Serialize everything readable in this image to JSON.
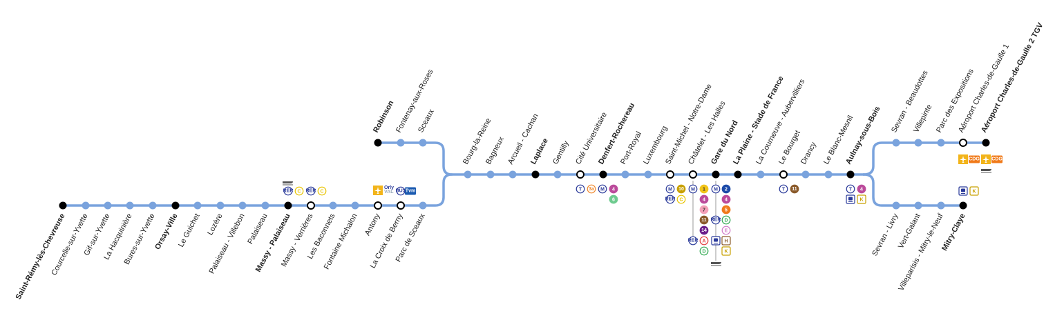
{
  "line_color": "#7aa3dd",
  "stations": [
    {
      "id": "saint-remy",
      "name": "Saint-Rémy-lès-Chevreuse",
      "bold": true,
      "type": "terminus"
    },
    {
      "id": "courcelle",
      "name": "Courcelle-sur-Yvette",
      "bold": false,
      "type": "stop"
    },
    {
      "id": "gif",
      "name": "Gif-sur-Yvette",
      "bold": false,
      "type": "stop"
    },
    {
      "id": "hacquiniere",
      "name": "La Hacquinière",
      "bold": false,
      "type": "stop"
    },
    {
      "id": "bures",
      "name": "Bures-sur-Yvette",
      "bold": false,
      "type": "stop"
    },
    {
      "id": "orsay",
      "name": "Orsay-Ville",
      "bold": true,
      "type": "terminus"
    },
    {
      "id": "guichet",
      "name": "Le Guichet",
      "bold": false,
      "type": "stop"
    },
    {
      "id": "lozere",
      "name": "Lozère",
      "bold": false,
      "type": "stop"
    },
    {
      "id": "palaiseau-villebon",
      "name": "Palaiseau - Villebon",
      "bold": false,
      "type": "stop"
    },
    {
      "id": "palaiseau",
      "name": "Palaiseau",
      "bold": false,
      "type": "stop"
    },
    {
      "id": "massy-palaiseau",
      "name": "Massy - Palaiseau",
      "bold": true,
      "type": "terminus"
    },
    {
      "id": "massy-verrieres",
      "name": "Massy - Verrières",
      "bold": false,
      "type": "interchange"
    },
    {
      "id": "baconnets",
      "name": "Les Baconnets",
      "bold": false,
      "type": "stop"
    },
    {
      "id": "fontaine-michalon",
      "name": "Fontaine Michalon",
      "bold": false,
      "type": "stop"
    },
    {
      "id": "antony",
      "name": "Antony",
      "bold": false,
      "type": "interchange"
    },
    {
      "id": "croix-berny",
      "name": "La Croix de Berny",
      "bold": false,
      "type": "interchange"
    },
    {
      "id": "parc-sceaux",
      "name": "Parc de Sceaux",
      "bold": false,
      "type": "stop"
    },
    {
      "id": "robinson",
      "name": "Robinson",
      "bold": true,
      "type": "terminus"
    },
    {
      "id": "fontenay",
      "name": "Fontenay-aux-Roses",
      "bold": false,
      "type": "stop"
    },
    {
      "id": "sceaux",
      "name": "Sceaux",
      "bold": false,
      "type": "stop"
    },
    {
      "id": "bourg-la-reine",
      "name": "Bourg-la-Reine",
      "bold": false,
      "type": "stop"
    },
    {
      "id": "bagneux",
      "name": "Bagneux",
      "bold": false,
      "type": "stop"
    },
    {
      "id": "arcueil",
      "name": "Arcueil - Cachan",
      "bold": false,
      "type": "stop"
    },
    {
      "id": "laplace",
      "name": "Laplace",
      "bold": true,
      "type": "terminus"
    },
    {
      "id": "gentilly",
      "name": "Gentilly",
      "bold": false,
      "type": "stop"
    },
    {
      "id": "cite-u",
      "name": "Cité Universitaire",
      "bold": false,
      "type": "interchange"
    },
    {
      "id": "denfert",
      "name": "Denfert-Rochereau",
      "bold": true,
      "type": "terminus"
    },
    {
      "id": "port-royal",
      "name": "Port-Royal",
      "bold": false,
      "type": "stop"
    },
    {
      "id": "luxembourg",
      "name": "Luxembourg",
      "bold": false,
      "type": "stop"
    },
    {
      "id": "saint-michel",
      "name": "Saint-Michel - Notre-Dame",
      "bold": false,
      "type": "interchange"
    },
    {
      "id": "chatelet",
      "name": "Châtelet - Les Halles",
      "bold": false,
      "type": "interchange"
    },
    {
      "id": "gare-du-nord",
      "name": "Gare du Nord",
      "bold": true,
      "type": "terminus"
    },
    {
      "id": "la-plaine",
      "name": "La Plaine - Stade de France",
      "bold": true,
      "type": "terminus"
    },
    {
      "id": "courneuve",
      "name": "La Courneuve - Aubervilliers",
      "bold": false,
      "type": "stop"
    },
    {
      "id": "bourget",
      "name": "Le Bourget",
      "bold": false,
      "type": "interchange"
    },
    {
      "id": "drancy",
      "name": "Drancy",
      "bold": false,
      "type": "stop"
    },
    {
      "id": "blanc-mesnil",
      "name": "Le Blanc-Mesnil",
      "bold": false,
      "type": "stop"
    },
    {
      "id": "aulnay",
      "name": "Aulnay-sous-Bois",
      "bold": true,
      "type": "terminus"
    },
    {
      "id": "sevran-beaudottes",
      "name": "Sevran - Beaudottes",
      "bold": false,
      "type": "stop"
    },
    {
      "id": "villepinte",
      "name": "Villepinte",
      "bold": false,
      "type": "stop"
    },
    {
      "id": "parc-expo",
      "name": "Parc des Expositions",
      "bold": false,
      "type": "stop"
    },
    {
      "id": "cdg1",
      "name": "Aéroport Charles-de-Gaulle 1",
      "bold": false,
      "type": "interchange"
    },
    {
      "id": "cdg2",
      "name": "Aéroport Charles-de-Gaulle 2 TGV",
      "bold": true,
      "type": "terminus"
    },
    {
      "id": "sevran-livry",
      "name": "Sevran - Livry",
      "bold": false,
      "type": "stop"
    },
    {
      "id": "vert-galant",
      "name": "Vert-Galant",
      "bold": false,
      "type": "stop"
    },
    {
      "id": "villeparisis",
      "name": "Villeparisis - Mitry-le-Neuf",
      "bold": false,
      "type": "stop"
    },
    {
      "id": "mitry",
      "name": "Mitry-Claye",
      "bold": true,
      "type": "terminus"
    }
  ],
  "badges": [
    {
      "name": "RER",
      "shape": "circle",
      "color": "#2a3a9a",
      "text_color": "#2a3a9a",
      "filled": false
    },
    {
      "name": "C",
      "shape": "circle",
      "color": "#e8c400",
      "text_color": "#e8c400",
      "filled": false
    },
    {
      "name": "T",
      "shape": "circle",
      "color": "#2a3a9a",
      "text_color": "#2a3a9a",
      "filled": false
    },
    {
      "name": "3a",
      "shape": "circle",
      "color": "#f08a30",
      "text_color": "#f08a30",
      "filled": false
    },
    {
      "name": "M",
      "shape": "circle",
      "color": "#2a3a9a",
      "text_color": "#2a3a9a",
      "filled": false
    },
    {
      "name": "4",
      "shape": "circle",
      "color": "#bb4a9b",
      "text_color": "#ffffff",
      "filled": true
    },
    {
      "name": "6",
      "shape": "circle",
      "color": "#6ecb8f",
      "text_color": "#ffffff",
      "filled": true
    },
    {
      "name": "10",
      "shape": "circle",
      "color": "#c8a000",
      "text_color": "#ffffff",
      "filled": true
    },
    {
      "name": "1",
      "shape": "circle",
      "color": "#f2c418",
      "text_color": "#333333",
      "filled": true
    },
    {
      "name": "7",
      "shape": "circle",
      "color": "#f4a0b8",
      "text_color": "#333333",
      "filled": true
    },
    {
      "name": "11",
      "shape": "circle",
      "color": "#8a5a2a",
      "text_color": "#ffffff",
      "filled": true
    },
    {
      "name": "14",
      "shape": "circle",
      "color": "#6a1d8a",
      "text_color": "#ffffff",
      "filled": true
    },
    {
      "name": "A",
      "shape": "circle",
      "color": "#e23a3a",
      "text_color": "#e23a3a",
      "filled": false
    },
    {
      "name": "D",
      "shape": "circle",
      "color": "#2ea84f",
      "text_color": "#2ea84f",
      "filled": false
    },
    {
      "name": "2",
      "shape": "circle",
      "color": "#1c4aa8",
      "text_color": "#ffffff",
      "filled": true
    },
    {
      "name": "5",
      "shape": "circle",
      "color": "#f07a1a",
      "text_color": "#ffffff",
      "filled": true
    },
    {
      "name": "E",
      "shape": "circle",
      "color": "#d17ac8",
      "text_color": "#d17ac8",
      "filled": false
    },
    {
      "name": "H",
      "shape": "square",
      "color": "#8a5a2a",
      "text_color": "#8a5a2a",
      "filled": false
    },
    {
      "name": "K",
      "shape": "square",
      "color": "#c8a000",
      "text_color": "#c8a000",
      "filled": false
    },
    {
      "name": "Tvm",
      "shape": "rect",
      "color": "#1a5ab0",
      "text_color": "#ffffff",
      "filled": true
    },
    {
      "name": "BUS",
      "shape": "circle",
      "color": "#2a3a9a",
      "text_color": "#2a3a9a",
      "filled": false
    },
    {
      "name": "Orly Val",
      "shape": "rect",
      "color": "#f2b41a",
      "text_color": "#2a3a9a",
      "filled": true
    },
    {
      "name": "CDG VAL",
      "shape": "rect",
      "color": "#f07a1a",
      "text_color": "#ffffff",
      "filled": true
    }
  ],
  "icons": [
    "train-icon",
    "plane-icon",
    "tgv-icon"
  ]
}
